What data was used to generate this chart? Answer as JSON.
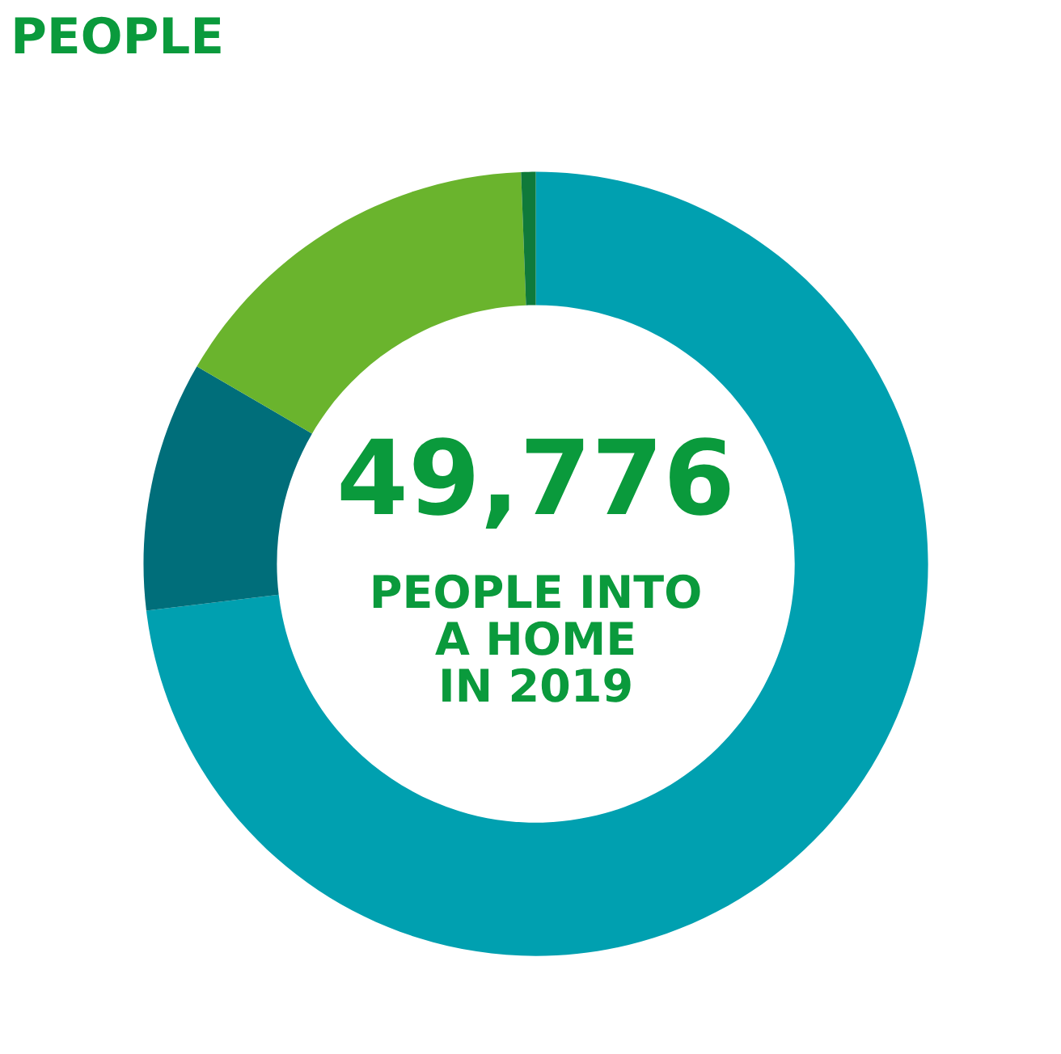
{
  "chart_data": {
    "type": "donut",
    "title": "PEOPLE",
    "categories": [
      null,
      null,
      null,
      null
    ],
    "values": [
      73.1,
      10.3,
      16.0,
      0.6
    ],
    "colors": [
      "#00a0b0",
      "#006e7a",
      "#6ab42d",
      "#0f7a3a"
    ],
    "annotations": [
      "49,776",
      "PEOPLE INTO\nA HOME\nIN 2019"
    ],
    "legend": false
  }
}
